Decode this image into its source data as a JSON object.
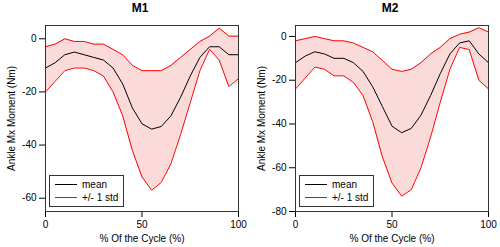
{
  "chart_data": [
    {
      "type": "line",
      "title": "M1",
      "x_label": "% Of the Cycle (%)",
      "y_label": "Ankle Mx Moment (Nm)",
      "x": [
        0,
        5,
        10,
        15,
        20,
        25,
        30,
        35,
        40,
        45,
        50,
        55,
        60,
        65,
        70,
        75,
        80,
        85,
        90,
        95,
        100
      ],
      "series": [
        {
          "name": "mean",
          "color": "black",
          "values": [
            -11,
            -9,
            -6,
            -5,
            -6,
            -7,
            -8,
            -11,
            -17,
            -26,
            -32,
            -34,
            -33,
            -29,
            -22,
            -14,
            -7,
            -3,
            -3,
            -6,
            -6
          ]
        },
        {
          "name": "+/- 1 std",
          "color": "red",
          "upper": [
            -3,
            -2,
            0,
            -1,
            -1,
            -2,
            -2,
            -4,
            -6,
            -10,
            -12,
            -12,
            -12,
            -10,
            -7,
            -4,
            -1,
            1,
            4,
            1,
            1
          ],
          "lower": [
            -20,
            -16,
            -12,
            -11,
            -11,
            -12,
            -14,
            -20,
            -29,
            -42,
            -52,
            -57,
            -54,
            -47,
            -36,
            -24,
            -12,
            -4,
            -8,
            -18,
            -15
          ]
        }
      ],
      "xlim": [
        0,
        100
      ],
      "xticks": [
        0,
        50,
        100
      ],
      "ylim": [
        -65,
        5
      ],
      "yticks": [
        -60,
        -40,
        -20,
        0
      ],
      "grid": false,
      "legend": "lower left"
    },
    {
      "type": "line",
      "title": "M2",
      "x_label": "% Of the Cycle (%)",
      "y_label": "Ankle Mx Moment (Nm)",
      "x": [
        0,
        5,
        10,
        15,
        20,
        25,
        30,
        35,
        40,
        45,
        50,
        55,
        60,
        65,
        70,
        75,
        80,
        85,
        90,
        95,
        100
      ],
      "series": [
        {
          "name": "mean",
          "color": "black",
          "values": [
            -12,
            -9,
            -7,
            -8,
            -10,
            -10,
            -12,
            -16,
            -23,
            -32,
            -41,
            -44,
            -42,
            -36,
            -27,
            -17,
            -8,
            -3,
            -2,
            -8,
            -12
          ]
        },
        {
          "name": "+/- 1 std",
          "color": "red",
          "upper": [
            -2,
            -1,
            0,
            -1,
            -2,
            -2,
            -3,
            -5,
            -7,
            -11,
            -15,
            -16,
            -15,
            -12,
            -8,
            -5,
            -1,
            1,
            2,
            4,
            2
          ],
          "lower": [
            -24,
            -19,
            -14,
            -15,
            -18,
            -18,
            -21,
            -27,
            -39,
            -55,
            -67,
            -73,
            -70,
            -60,
            -46,
            -30,
            -15,
            -5,
            -6,
            -20,
            -24
          ]
        }
      ],
      "xlim": [
        0,
        100
      ],
      "xticks": [
        0,
        50,
        100
      ],
      "ylim": [
        -80,
        5
      ],
      "yticks": [
        -80,
        -60,
        -40,
        -20,
        0
      ],
      "grid": false,
      "legend": "lower left"
    }
  ]
}
